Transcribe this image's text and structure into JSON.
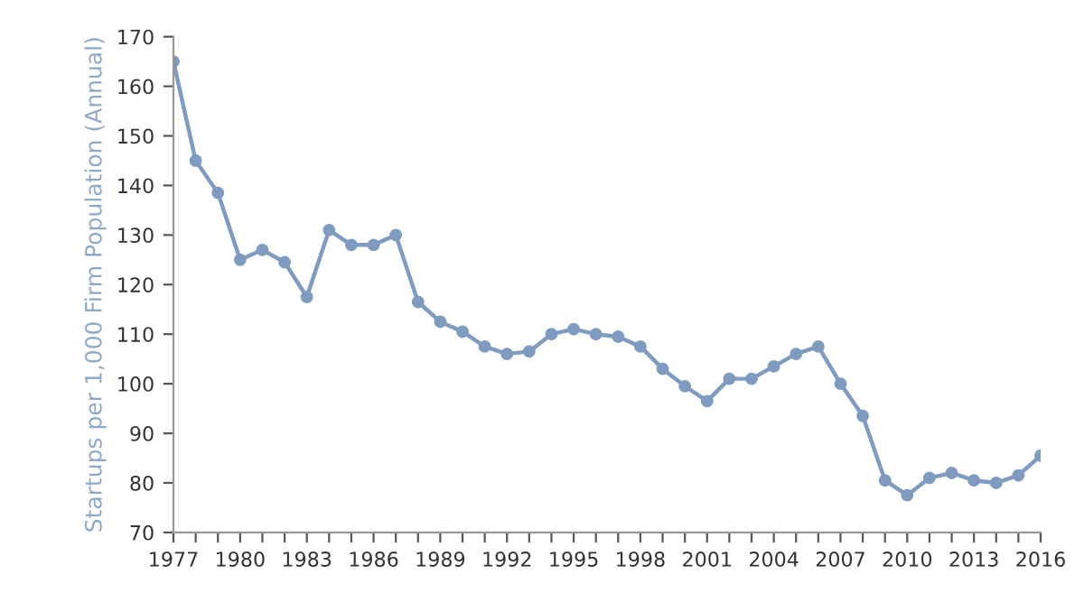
{
  "chart_data": {
    "type": "line",
    "ylabel": "Startups per 1,000 Firm Population (Annual)",
    "x": [
      1977,
      1978,
      1979,
      1980,
      1981,
      1982,
      1983,
      1984,
      1985,
      1986,
      1987,
      1988,
      1989,
      1990,
      1991,
      1992,
      1993,
      1994,
      1995,
      1996,
      1997,
      1998,
      1999,
      2000,
      2001,
      2002,
      2003,
      2004,
      2005,
      2006,
      2007,
      2008,
      2009,
      2010,
      2011,
      2012,
      2013,
      2014,
      2015,
      2016
    ],
    "series": [
      {
        "color": "#7f9bbf",
        "values": [
          165,
          145,
          138.5,
          125,
          127,
          124.5,
          117.5,
          131,
          128,
          128,
          130,
          116.5,
          112.5,
          110.5,
          107.5,
          106,
          106.5,
          110,
          111,
          110,
          109.5,
          107.5,
          103,
          99.5,
          96.5,
          101,
          101,
          103.5,
          106,
          107.5,
          100,
          93.5,
          80.5,
          77.5,
          81,
          82,
          80.5,
          80,
          81.5,
          85.5
        ]
      }
    ],
    "marker": "circle",
    "line_style": "solid",
    "grid": false,
    "legend": false,
    "xlim": [
      1977,
      2016
    ],
    "ylim": [
      70,
      170
    ],
    "xticks": [
      1977,
      {
        "value": 1978,
        "label": null
      },
      {
        "value": 1979,
        "label": null
      },
      1980,
      {
        "value": 1981,
        "label": null
      },
      {
        "value": 1982,
        "label": null
      },
      1983,
      {
        "value": 1984,
        "label": null
      },
      {
        "value": 1985,
        "label": null
      },
      1986,
      {
        "value": 1987,
        "label": null
      },
      {
        "value": 1988,
        "label": null
      },
      1989,
      {
        "value": 1990,
        "label": null
      },
      {
        "value": 1991,
        "label": null
      },
      1992,
      {
        "value": 1993,
        "label": null
      },
      {
        "value": 1994,
        "label": null
      },
      1995,
      {
        "value": 1996,
        "label": null
      },
      {
        "value": 1997,
        "label": null
      },
      1998,
      {
        "value": 1999,
        "label": null
      },
      {
        "value": 2000,
        "label": null
      },
      2001,
      {
        "value": 2002,
        "label": null
      },
      {
        "value": 2003,
        "label": null
      },
      2004,
      {
        "value": 2005,
        "label": null
      },
      {
        "value": 2006,
        "label": null
      },
      2007,
      {
        "value": 2008,
        "label": null
      },
      {
        "value": 2009,
        "label": null
      },
      2010,
      {
        "value": 2011,
        "label": null
      },
      {
        "value": 2012,
        "label": null
      },
      2013,
      {
        "value": 2014,
        "label": null
      },
      {
        "value": 2015,
        "label": null
      },
      2016
    ],
    "yticks": [
      70,
      80,
      90,
      100,
      110,
      120,
      130,
      140,
      150,
      160,
      170
    ]
  }
}
